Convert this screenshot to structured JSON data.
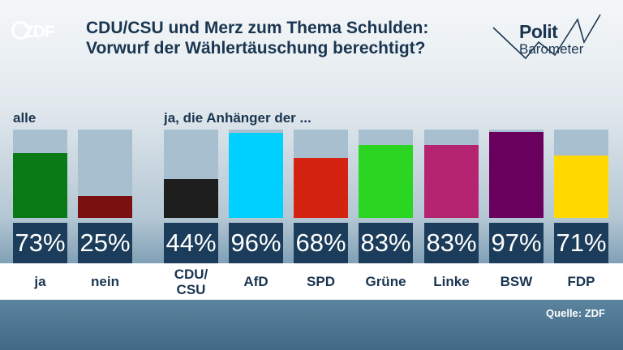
{
  "logo": {
    "text": "ZDF"
  },
  "title": {
    "line1": "CDU/CSU und Merz zum Thema Schulden:",
    "line2": "Vorwurf der Wählertäuschung berechtigt?"
  },
  "brand": {
    "line1": "Polit",
    "line2": "Barometer"
  },
  "labels": {
    "all": "alle",
    "supporters": "ja, die Anhänger der ..."
  },
  "source": "Quelle: ZDF",
  "chart_data": {
    "type": "bar",
    "title": "CDU/CSU und Merz zum Thema Schulden: Vorwurf der Wählertäuschung berechtigt?",
    "ylim": [
      0,
      100
    ],
    "unit": "%",
    "categories": [
      "ja",
      "nein",
      "CDU/\nCSU",
      "AfD",
      "SPD",
      "Grüne",
      "Linke",
      "BSW",
      "FDP"
    ],
    "values": [
      73,
      25,
      44,
      96,
      68,
      83,
      83,
      97,
      71
    ],
    "value_labels": [
      "73%",
      "25%",
      "44%",
      "96%",
      "68%",
      "83%",
      "83%",
      "97%",
      "71%"
    ],
    "colors": [
      "#0a7a16",
      "#7a1010",
      "#1e1e1e",
      "#00d0ff",
      "#d42310",
      "#2ad622",
      "#b52470",
      "#6a005e",
      "#ffd900"
    ],
    "groups": [
      {
        "label": "alle",
        "indices": [
          0,
          1
        ]
      },
      {
        "label": "ja, die Anhänger der ...",
        "indices": [
          2,
          3,
          4,
          5,
          6,
          7,
          8
        ]
      }
    ]
  }
}
